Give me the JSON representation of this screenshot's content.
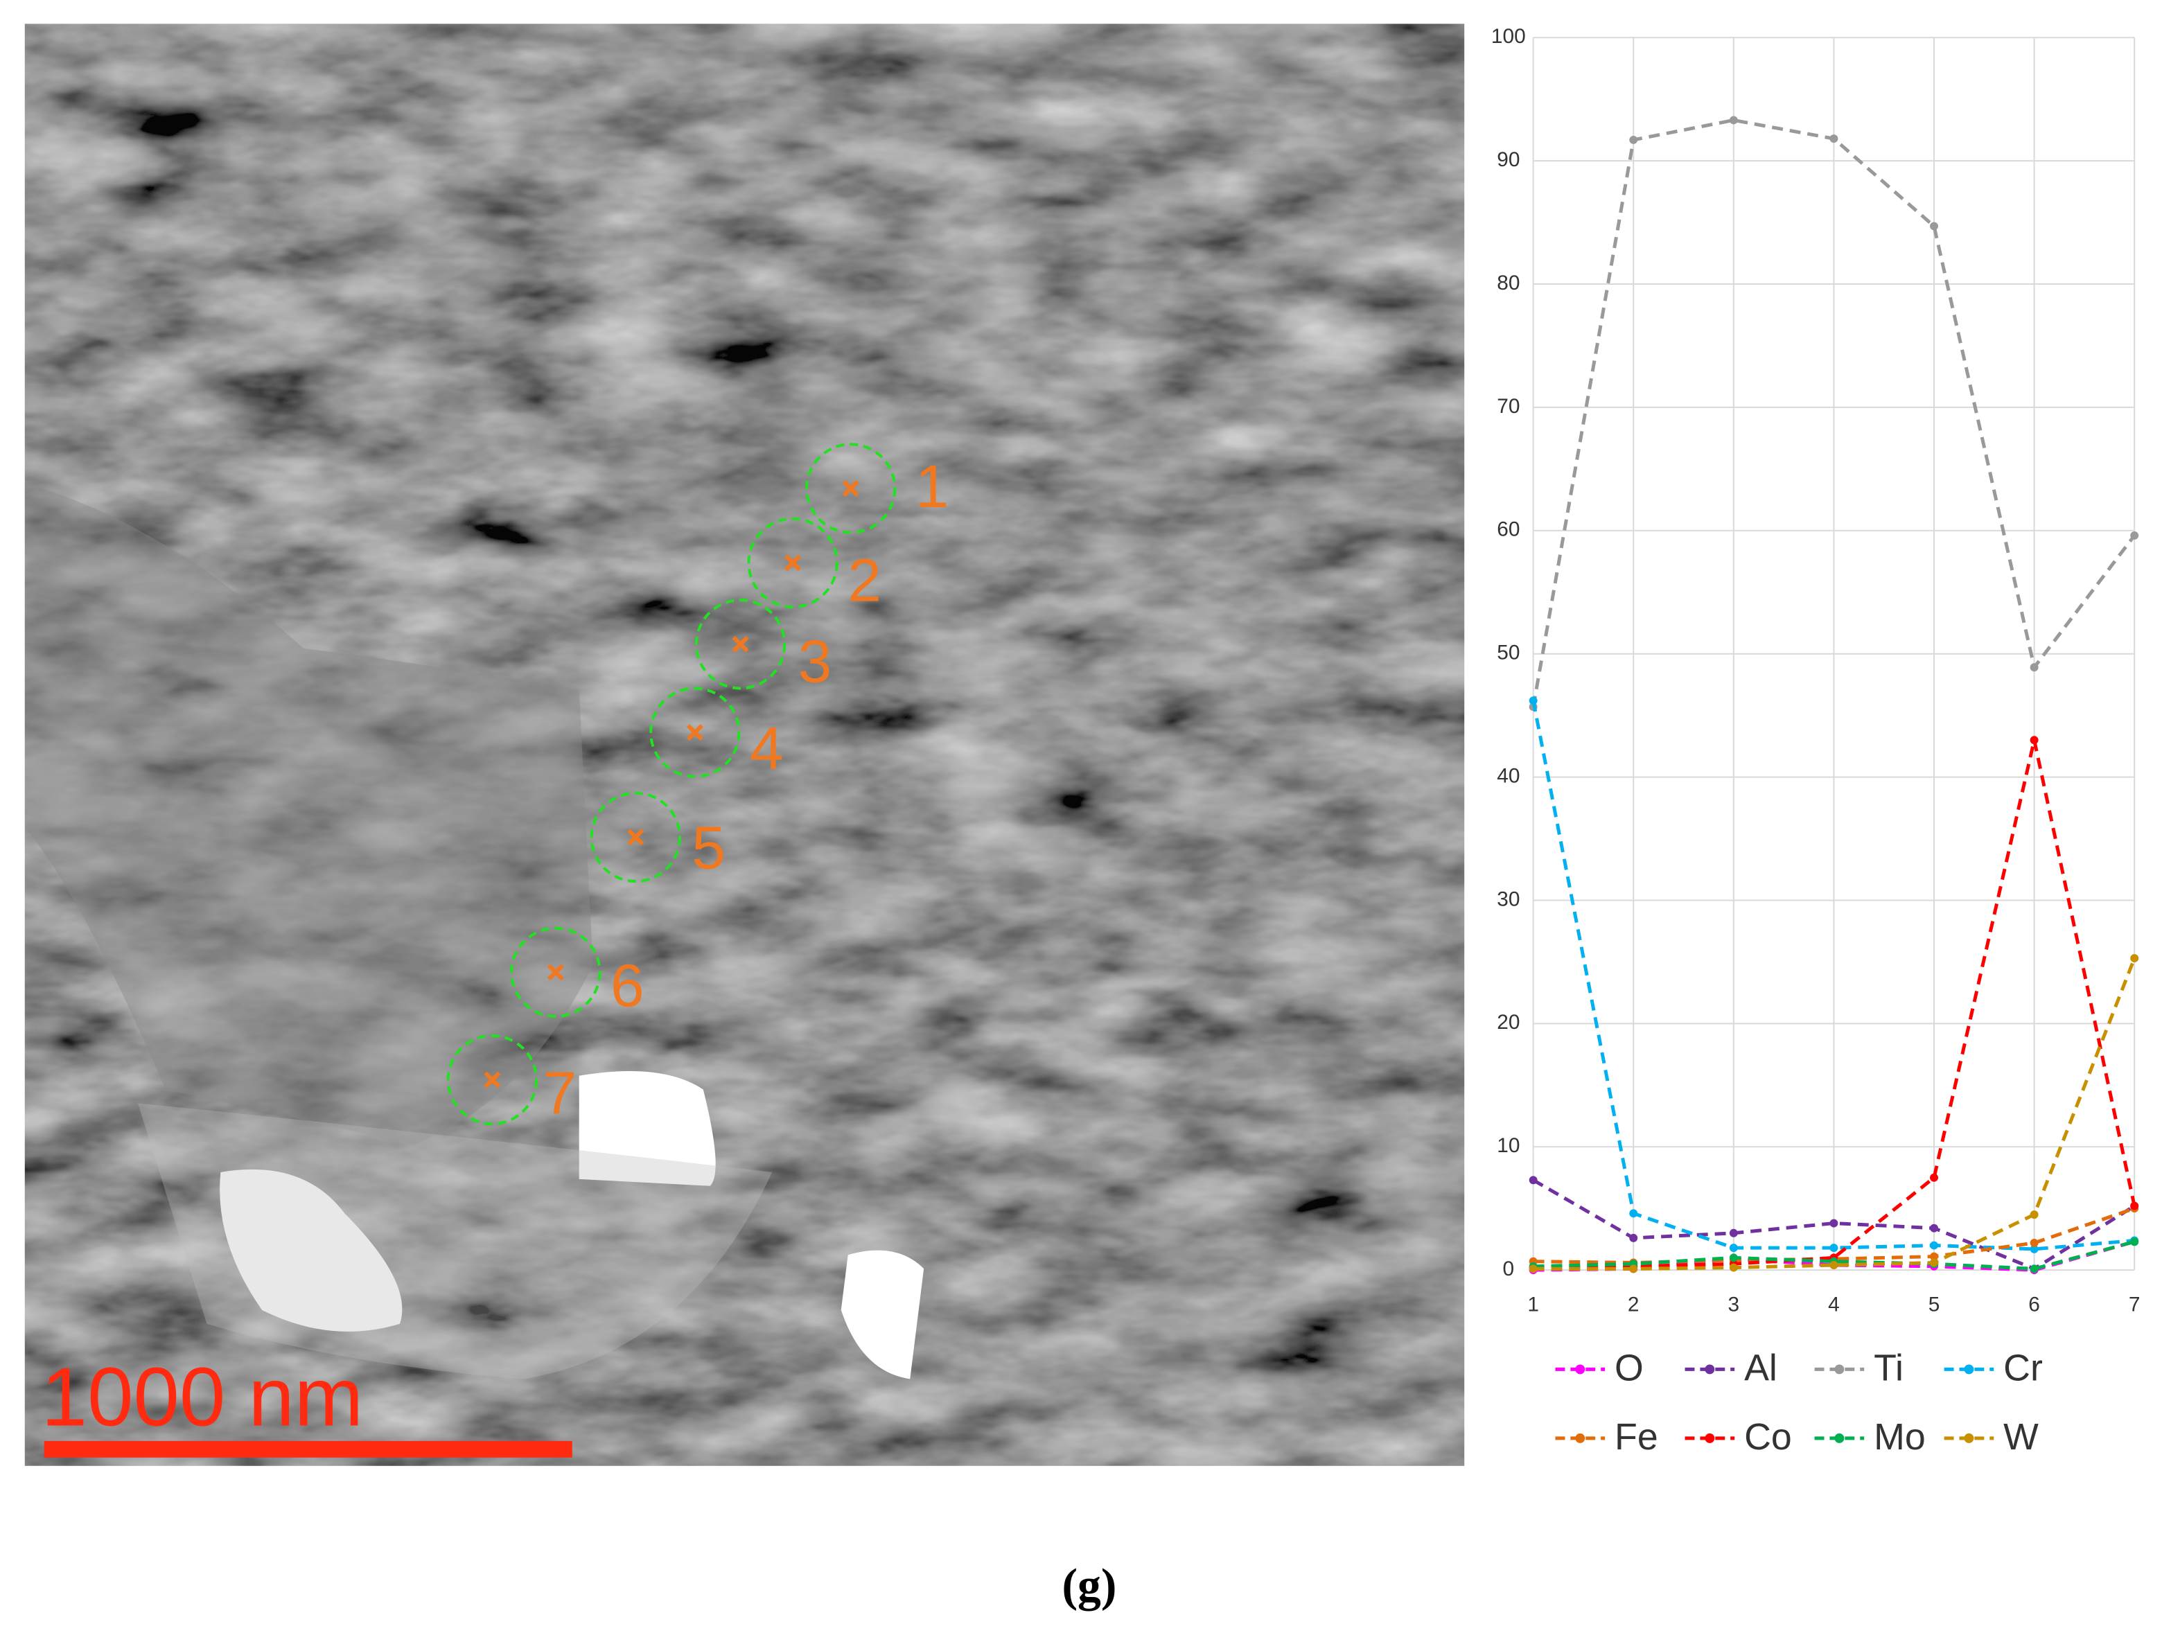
{
  "chart_data": {
    "type": "line",
    "x": [
      1,
      2,
      3,
      4,
      5,
      6,
      7
    ],
    "xlim": [
      1,
      7
    ],
    "xticks": [
      1,
      2,
      3,
      4,
      5,
      6,
      7
    ],
    "ylim": [
      0,
      100
    ],
    "yticks": [
      0,
      10,
      20,
      30,
      40,
      50,
      60,
      70,
      80,
      90,
      100
    ],
    "grid": true,
    "series": [
      {
        "name": "O",
        "color": "#ff00ff",
        "values": [
          0.0,
          0.1,
          0.9,
          0.4,
          0.3,
          0.0,
          2.3
        ]
      },
      {
        "name": "Al",
        "color": "#7030a0",
        "values": [
          7.3,
          2.6,
          3.0,
          3.8,
          3.4,
          0.1,
          5.2
        ]
      },
      {
        "name": "Ti",
        "color": "#999999",
        "values": [
          45.7,
          91.7,
          93.3,
          91.8,
          84.7,
          48.9,
          59.6
        ]
      },
      {
        "name": "Cr",
        "color": "#00b0f0",
        "values": [
          46.2,
          4.6,
          1.8,
          1.8,
          2.0,
          1.7,
          2.4
        ]
      },
      {
        "name": "Fe",
        "color": "#e36c0a",
        "values": [
          0.7,
          0.6,
          0.8,
          0.9,
          1.1,
          2.2,
          5.0
        ]
      },
      {
        "name": "Co",
        "color": "#ff0000",
        "values": [
          0.2,
          0.3,
          0.5,
          1.0,
          7.5,
          43.0,
          5.2
        ]
      },
      {
        "name": "Mo",
        "color": "#00b050",
        "values": [
          0.3,
          0.5,
          1.0,
          0.7,
          0.5,
          0.1,
          2.3
        ]
      },
      {
        "name": "W",
        "color": "#c89000",
        "values": [
          0.1,
          0.1,
          0.2,
          0.4,
          0.6,
          4.5,
          25.3
        ]
      }
    ]
  },
  "image": {
    "points": [
      "1",
      "2",
      "3",
      "4",
      "5",
      "6",
      "7"
    ],
    "scale_bar": "1000 nm"
  },
  "caption": "(g)"
}
